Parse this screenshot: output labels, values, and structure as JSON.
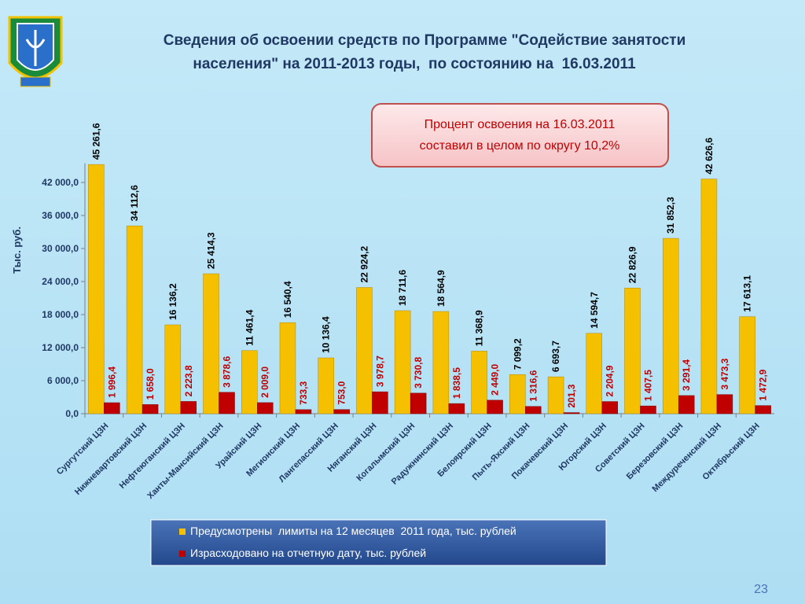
{
  "chart_data": {
    "type": "bar",
    "title": [
      "Сведения об освоении средств по Программе \"Содействие занятости",
      "населения\" на 2011-2013 годы,  по состоянию на  16.03.2011"
    ],
    "annotation": [
      "Процент освоения на 16.03.2011",
      "составил в целом по округу 10,2%"
    ],
    "y_label": "Тыс. руб.",
    "page_number": "23",
    "categories": [
      "Сургутский ЦЗН",
      "Нижневартовский ЦЗН",
      "Нефтеюганский ЦЗН",
      "Ханты-Мансийский ЦЗН",
      "Урайский ЦЗН",
      "Мегионский ЦЗН",
      "Лангепасский ЦЗН",
      "Няганский ЦЗН",
      "Когалымский ЦЗН",
      "Радужнинский ЦЗН",
      "Белоярский ЦЗН",
      "Пыть-Яхский ЦЗН",
      "Покачевский ЦЗН",
      "Югорский ЦЗН",
      "Советский ЦЗН",
      "Березовский ЦЗН",
      "Междуреченский ЦЗН",
      "Октябрьский ЦЗН"
    ],
    "series": [
      {
        "name": "Предусмотрены  лимиты на 12 месяцев  2011 года, тыс. рублей",
        "color": "#f5c000",
        "values": [
          45261.6,
          34112.6,
          16136.2,
          25414.3,
          11461.4,
          16540.4,
          10136.4,
          22924.2,
          18711.6,
          18564.9,
          11368.9,
          7099.2,
          6693.7,
          14594.7,
          22826.9,
          31852.3,
          42626.6,
          17613.1
        ],
        "value_labels": [
          "45 261,6",
          "34 112,6",
          "16 136,2",
          "25 414,3",
          "11 461,4",
          "16 540,4",
          "10 136,4",
          "22 924,2",
          "18 711,6",
          "18 564,9",
          "11 368,9",
          "7 099,2",
          "6 693,7",
          "14 594,7",
          "22 826,9",
          "31 852,3",
          "42 626,6",
          "17 613,1"
        ]
      },
      {
        "name": "Израсходовано на отчетную дату, тыс. рублей",
        "color": "#c00000",
        "values": [
          1996.4,
          1658.0,
          2223.8,
          3878.6,
          2009.0,
          733.3,
          753.0,
          3978.7,
          3730.8,
          1838.5,
          2449.0,
          1316.6,
          201.3,
          2204.9,
          1407.5,
          3291.4,
          3473.3,
          1472.9
        ],
        "value_labels": [
          "1 996,4",
          "1 658,0",
          "2 223,8",
          "3 878,6",
          "2 009,0",
          "733,3",
          "753,0",
          "3 978,7",
          "3 730,8",
          "1 838,5",
          "2 449,0",
          "1 316,6",
          "201,3",
          "2 204,9",
          "1 407,5",
          "3 291,4",
          "3 473,3",
          "1 472,9"
        ]
      }
    ],
    "ylim": [
      0,
      45500
    ],
    "yticks": [
      {
        "value": 0,
        "label": "0,0"
      },
      {
        "value": 6000,
        "label": "6 000,0"
      },
      {
        "value": 12000,
        "label": "12 000,0"
      },
      {
        "value": 18000,
        "label": "18 000,0"
      },
      {
        "value": 24000,
        "label": "24 000,0"
      },
      {
        "value": 30000,
        "label": "30 000,0"
      },
      {
        "value": 36000,
        "label": "36 000,0"
      },
      {
        "value": 42000,
        "label": "42 000,0"
      }
    ],
    "grid": false
  }
}
